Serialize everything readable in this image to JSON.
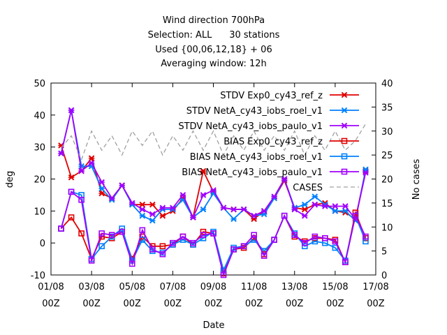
{
  "chart_data": {
    "type": "line",
    "title_lines": [
      "Wind direction 700hPa",
      "Selection: ALL      30 stations",
      "Used {00,06,12,18} + 06",
      "Averaging window: 12h"
    ],
    "xlabel": "Date",
    "ylabel": "deg",
    "y2label": "No cases",
    "ylim": [
      -10,
      50
    ],
    "y2lim": [
      0,
      40
    ],
    "yticks": [
      "-10",
      "0",
      "10",
      "20",
      "30",
      "40",
      "50"
    ],
    "y2ticks": [
      "0",
      "5",
      "10",
      "15",
      "20",
      "25",
      "30",
      "35",
      "40"
    ],
    "xticks": [
      {
        "date": "01/08",
        "hour": "00Z",
        "day": 0
      },
      {
        "date": "03/08",
        "hour": "00Z",
        "day": 2
      },
      {
        "date": "05/08",
        "hour": "00Z",
        "day": 4
      },
      {
        "date": "07/08",
        "hour": "00Z",
        "day": 6
      },
      {
        "date": "09/08",
        "hour": "00Z",
        "day": 8
      },
      {
        "date": "11/08",
        "hour": "00Z",
        "day": 10
      },
      {
        "date": "13/08",
        "hour": "00Z",
        "day": 12
      },
      {
        "date": "15/08",
        "hour": "00Z",
        "day": 14
      },
      {
        "date": "17/08",
        "hour": "00Z",
        "day": 16
      }
    ],
    "x_days": [
      0.5,
      1,
      1.5,
      2,
      2.5,
      3,
      3.5,
      4,
      4.5,
      5,
      5.5,
      6,
      6.5,
      7,
      7.5,
      8,
      8.5,
      9,
      9.5,
      10,
      10.5,
      11,
      11.5,
      12,
      12.5,
      13,
      13.5,
      14,
      14.5,
      15,
      15.5
    ],
    "legend_position": "top-right",
    "series": [
      {
        "name": "STDV Exp0_cy43_ref_z",
        "color": "#e00000",
        "marker": "x",
        "axis": "y1",
        "values": [
          30.5,
          20.5,
          22.5,
          26.5,
          15.5,
          14,
          18,
          12,
          12,
          12,
          8.5,
          10,
          14,
          8,
          22.5,
          16,
          11,
          10.5,
          10.5,
          7.5,
          10,
          14,
          19.5,
          11,
          10.5,
          12,
          12.5,
          10,
          9.5,
          7.5,
          22.5
        ]
      },
      {
        "name": "STDV NetA_cy43_iobs_roel_v1",
        "color": "#0080ff",
        "marker": "x",
        "axis": "y1",
        "values": [
          28,
          41.5,
          24,
          24,
          17,
          13.5,
          18,
          12,
          8.5,
          7,
          10.5,
          10.5,
          13.5,
          8,
          10.5,
          15.5,
          11,
          7.5,
          10.5,
          8.5,
          9,
          14,
          20,
          11,
          12,
          14.5,
          12,
          10,
          10,
          7,
          23
        ]
      },
      {
        "name": "STDV NetA_cy43_iobs_paulo_v1",
        "color": "#a000ff",
        "marker": "x",
        "axis": "y1",
        "values": [
          28,
          41.5,
          22.5,
          25,
          19,
          14,
          18,
          12.5,
          10.5,
          9,
          11,
          11,
          15,
          8,
          15,
          16.5,
          11,
          10.5,
          10.5,
          8.5,
          10,
          14.5,
          20,
          10.5,
          8.5,
          12,
          11.5,
          11.5,
          11.5,
          7.5,
          22
        ]
      },
      {
        "name": "BIAS Exp0_cy43_ref_z",
        "color": "#e00000",
        "marker": "square",
        "axis": "y1",
        "values": [
          4.5,
          8,
          3,
          -5,
          2,
          1.5,
          3.5,
          -5,
          2,
          -1,
          -1,
          -0.5,
          2,
          -0.5,
          3.5,
          3,
          -9.5,
          -2,
          -1.5,
          1.5,
          -3.5,
          1,
          8.5,
          2,
          0.5,
          1.5,
          1.5,
          1,
          -6,
          9.5,
          1.5
        ]
      },
      {
        "name": "BIAS NetA_cy43_iobs_roel_v1",
        "color": "#0080ff",
        "marker": "square",
        "axis": "y1",
        "values": [
          4.5,
          16,
          15,
          -5,
          -1,
          2,
          4.5,
          -5.5,
          1,
          -2.5,
          -3,
          -0.5,
          1,
          -0.5,
          1.5,
          3.5,
          -8.5,
          -1.5,
          -1,
          1,
          -2.5,
          1,
          8.5,
          3,
          -1,
          0.5,
          0,
          -1.5,
          -5.5,
          8.5,
          0.5
        ]
      },
      {
        "name": "BIAS NetA_cy43_iobs_paulo_v1",
        "color": "#a000ff",
        "marker": "square",
        "axis": "y1",
        "values": [
          4.5,
          16,
          13.5,
          -5.5,
          3,
          2.5,
          3.5,
          -6.5,
          4,
          -2,
          -3.5,
          0,
          2,
          0,
          2.5,
          3,
          -10,
          -2,
          -1,
          2.5,
          -4,
          1,
          8.5,
          2.5,
          0,
          2,
          1.5,
          0.5,
          -6,
          8.5,
          2
        ]
      },
      {
        "name": "CASES",
        "color": "#a0a0a0",
        "marker": "none",
        "dashed": true,
        "axis": "y2",
        "values": [
          26.5,
          29,
          24,
          30,
          26,
          29,
          25,
          30,
          27,
          30,
          25,
          29,
          26,
          30,
          26,
          30,
          25,
          29,
          26,
          30,
          26,
          29,
          26,
          30,
          25,
          29,
          26,
          30,
          26,
          28,
          31.5
        ]
      }
    ]
  }
}
